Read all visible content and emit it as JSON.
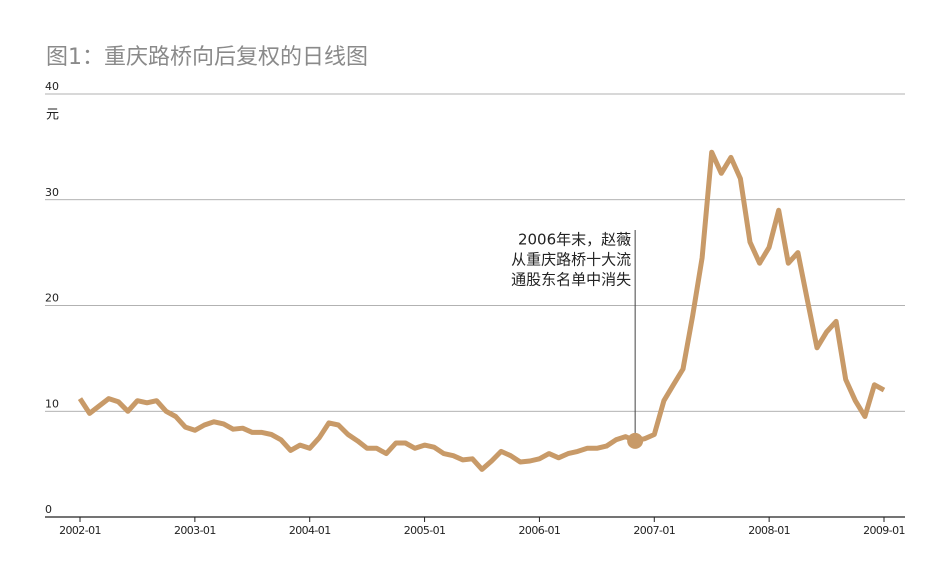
{
  "chart_data": {
    "type": "line",
    "title": "图1：重庆路桥向后复权的日线图",
    "y_unit": "元",
    "x": [
      "2002-01",
      "2002-02",
      "2002-03",
      "2002-04",
      "2002-05",
      "2002-06",
      "2002-07",
      "2002-08",
      "2002-09",
      "2002-10",
      "2002-11",
      "2002-12",
      "2003-01",
      "2003-02",
      "2003-03",
      "2003-04",
      "2003-05",
      "2003-06",
      "2003-07",
      "2003-08",
      "2003-09",
      "2003-10",
      "2003-11",
      "2003-12",
      "2004-01",
      "2004-02",
      "2004-03",
      "2004-04",
      "2004-05",
      "2004-06",
      "2004-07",
      "2004-08",
      "2004-09",
      "2004-10",
      "2004-11",
      "2004-12",
      "2005-01",
      "2005-02",
      "2005-03",
      "2005-04",
      "2005-05",
      "2005-06",
      "2005-07",
      "2005-08",
      "2005-09",
      "2005-10",
      "2005-11",
      "2005-12",
      "2006-01",
      "2006-02",
      "2006-03",
      "2006-04",
      "2006-05",
      "2006-06",
      "2006-07",
      "2006-08",
      "2006-09",
      "2006-10",
      "2006-11",
      "2006-12",
      "2007-01",
      "2007-02",
      "2007-03",
      "2007-04",
      "2007-05",
      "2007-06",
      "2007-07",
      "2007-08",
      "2007-09",
      "2007-10",
      "2007-11",
      "2007-12",
      "2008-01",
      "2008-02",
      "2008-03",
      "2008-04",
      "2008-05",
      "2008-06",
      "2008-07",
      "2008-08",
      "2008-09",
      "2008-10",
      "2008-11",
      "2008-12",
      "2009-01"
    ],
    "series": [
      {
        "name": "重庆路桥",
        "color": "#c89a68",
        "values": [
          11.2,
          9.8,
          10.5,
          11.2,
          10.9,
          10.0,
          11.0,
          10.8,
          11.0,
          10.0,
          9.5,
          8.5,
          8.2,
          8.7,
          9.0,
          8.8,
          8.3,
          8.4,
          8.0,
          8.0,
          7.8,
          7.3,
          6.3,
          6.8,
          6.5,
          7.5,
          8.9,
          8.7,
          7.8,
          7.2,
          6.5,
          6.5,
          6.0,
          7.0,
          7.0,
          6.5,
          6.8,
          6.6,
          6.0,
          5.8,
          5.4,
          5.5,
          4.5,
          5.3,
          6.2,
          5.8,
          5.2,
          5.3,
          5.5,
          6.0,
          5.6,
          6.0,
          6.2,
          6.5,
          6.5,
          6.7,
          7.3,
          7.6,
          7.2,
          7.4,
          7.8,
          11.0,
          12.5,
          14.0,
          19.0,
          24.5,
          34.5,
          32.5,
          34.0,
          32.0,
          26.0,
          24.0,
          25.5,
          29.0,
          24.0,
          25.0,
          20.5,
          16.0,
          17.5,
          18.5,
          13.0,
          11.0,
          9.5,
          12.5,
          12.0
        ]
      }
    ],
    "xlim": [
      "2002-01",
      "2009-01"
    ],
    "xticks": [
      "2002-01",
      "2003-01",
      "2004-01",
      "2005-01",
      "2006-01",
      "2007-01",
      "2008-01",
      "2009-01"
    ],
    "ylim": [
      0,
      40
    ],
    "yticks": [
      0,
      10,
      20,
      30,
      40
    ],
    "grid": true,
    "annotation": {
      "lines": [
        "2006年末，赵薇",
        "从重庆路桥十大流",
        "通股东名单中消失"
      ],
      "x": "2006-11",
      "y": 7.2
    }
  }
}
